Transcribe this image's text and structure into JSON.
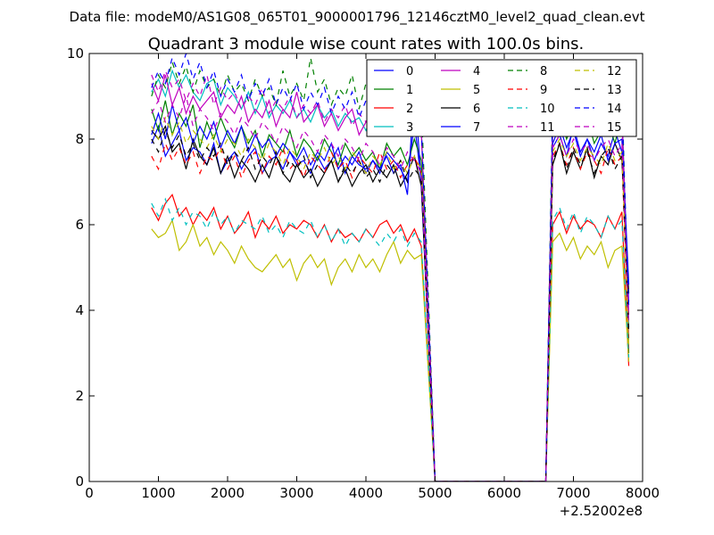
{
  "chart_data": {
    "type": "line",
    "suptitle": "Data file: modeM0/AS1G08_065T01_9000001796_12146cztM0_level2_quad_clean.evt",
    "title": "Quadrant 3 module wise count rates with 100.0s bins.",
    "xlabel": "",
    "ylabel": "",
    "x_offset_label": "+2.52002e8",
    "xlim": [
      0,
      8000
    ],
    "ylim": [
      0,
      10
    ],
    "xticks": [
      0,
      1000,
      2000,
      3000,
      4000,
      5000,
      6000,
      7000,
      8000
    ],
    "yticks": [
      0,
      2,
      4,
      6,
      8,
      10
    ],
    "grid": false,
    "legend_position": "top-right",
    "legend_columns": 4,
    "x": [
      900,
      1000,
      1100,
      1200,
      1300,
      1400,
      1500,
      1600,
      1700,
      1800,
      1900,
      2000,
      2100,
      2200,
      2300,
      2400,
      2500,
      2600,
      2700,
      2800,
      2900,
      3000,
      3100,
      3200,
      3300,
      3400,
      3500,
      3600,
      3700,
      3800,
      3900,
      4000,
      4100,
      4200,
      4300,
      4400,
      4500,
      4600,
      4700,
      4800,
      5000,
      6600,
      6700,
      6800,
      6900,
      7000,
      7100,
      7200,
      7300,
      7400,
      7500,
      7600,
      7700,
      7800
    ],
    "series": [
      {
        "name": "0",
        "color": "#0000ff",
        "dash": "solid",
        "values": [
          7.9,
          8.3,
          7.6,
          7.9,
          8.2,
          7.5,
          7.8,
          7.7,
          7.4,
          7.9,
          7.2,
          7.5,
          7.7,
          7.3,
          7.6,
          7.8,
          7.2,
          7.5,
          7.6,
          7.3,
          7.7,
          7.4,
          7.5,
          7.2,
          7.6,
          7.3,
          7.5,
          7.8,
          7.2,
          7.6,
          7.4,
          7.3,
          7.5,
          7.2,
          7.7,
          7.5,
          7.3,
          7.0,
          8.4,
          7.0,
          0,
          0,
          7.8,
          8.1,
          7.6,
          8.3,
          7.7,
          8.0,
          7.5,
          7.9,
          7.6,
          8.2,
          7.7,
          4.2
        ]
      },
      {
        "name": "1",
        "color": "#008000",
        "dash": "solid",
        "values": [
          8.7,
          8.2,
          8.9,
          8.1,
          8.6,
          8.3,
          8.8,
          7.8,
          8.4,
          8.0,
          8.5,
          8.1,
          7.8,
          8.3,
          7.9,
          8.2,
          7.6,
          8.1,
          7.9,
          7.7,
          8.2,
          7.6,
          8.0,
          7.8,
          7.5,
          8.0,
          7.7,
          7.4,
          7.9,
          7.6,
          7.8,
          7.5,
          7.7,
          7.3,
          7.9,
          7.6,
          7.8,
          7.4,
          8.0,
          7.5,
          0,
          0,
          8.3,
          8.6,
          8.0,
          8.4,
          8.1,
          8.5,
          7.9,
          8.2,
          8.4,
          7.9,
          8.6,
          3.0
        ]
      },
      {
        "name": "2",
        "color": "#ff0000",
        "dash": "solid",
        "values": [
          6.4,
          6.1,
          6.5,
          6.7,
          6.2,
          6.4,
          6.0,
          6.3,
          6.1,
          6.4,
          5.9,
          6.2,
          5.8,
          6.0,
          6.3,
          5.7,
          6.1,
          5.9,
          6.2,
          5.8,
          6.0,
          5.9,
          6.1,
          6.0,
          5.7,
          6.0,
          5.6,
          5.9,
          5.7,
          5.8,
          5.6,
          5.9,
          5.7,
          6.0,
          6.1,
          5.8,
          6.0,
          5.6,
          5.9,
          5.5,
          0,
          0,
          6.0,
          6.3,
          5.8,
          6.2,
          5.9,
          6.1,
          6.0,
          5.7,
          6.2,
          5.9,
          6.3,
          2.7
        ]
      },
      {
        "name": "3",
        "color": "#00bfbf",
        "dash": "solid",
        "values": [
          9.1,
          9.4,
          9.0,
          9.6,
          9.2,
          9.5,
          9.1,
          8.9,
          9.3,
          9.4,
          8.8,
          9.2,
          9.0,
          8.7,
          9.1,
          8.6,
          9.0,
          8.5,
          8.8,
          8.6,
          8.9,
          8.5,
          8.7,
          8.4,
          8.8,
          8.5,
          8.7,
          8.3,
          8.6,
          8.4,
          8.5,
          8.2,
          8.6,
          8.3,
          8.5,
          8.1,
          8.4,
          8.2,
          8.6,
          8.3,
          0,
          0,
          8.7,
          9.0,
          8.6,
          8.9,
          8.5,
          8.8,
          8.6,
          8.9,
          8.4,
          8.7,
          8.8,
          3.6
        ]
      },
      {
        "name": "4",
        "color": "#bf00bf",
        "dash": "solid",
        "values": [
          9.3,
          8.9,
          9.5,
          8.8,
          9.2,
          8.6,
          9.0,
          8.7,
          8.9,
          9.1,
          8.5,
          8.8,
          8.6,
          9.0,
          8.4,
          8.7,
          8.5,
          8.9,
          8.3,
          8.7,
          8.5,
          9.1,
          8.4,
          8.6,
          8.8,
          8.3,
          8.6,
          8.2,
          8.5,
          8.7,
          8.1,
          8.4,
          8.6,
          8.2,
          8.5,
          8.3,
          8.7,
          8.1,
          8.4,
          8.2,
          0,
          0,
          8.5,
          8.8,
          8.4,
          8.7,
          8.3,
          8.6,
          8.2,
          8.5,
          8.7,
          8.3,
          8.6,
          3.9
        ]
      },
      {
        "name": "5",
        "color": "#bfbf00",
        "dash": "solid",
        "values": [
          5.9,
          5.7,
          5.8,
          6.1,
          5.4,
          5.6,
          6.0,
          5.5,
          5.7,
          5.3,
          5.6,
          5.4,
          5.1,
          5.5,
          5.2,
          5.0,
          4.9,
          5.1,
          5.3,
          5.0,
          5.2,
          4.7,
          5.1,
          5.3,
          5.0,
          5.2,
          4.6,
          5.0,
          5.2,
          4.9,
          5.3,
          5.0,
          5.2,
          4.9,
          5.3,
          5.6,
          5.1,
          5.4,
          5.2,
          5.3,
          0,
          0,
          5.6,
          5.8,
          5.4,
          5.7,
          5.2,
          5.5,
          5.3,
          5.6,
          5.0,
          5.4,
          5.5,
          2.8
        ]
      },
      {
        "name": "6",
        "color": "#000000",
        "dash": "solid",
        "values": [
          8.2,
          8.0,
          8.3,
          7.7,
          7.9,
          7.3,
          8.0,
          7.6,
          7.4,
          7.8,
          7.2,
          7.6,
          7.1,
          7.5,
          7.3,
          7.0,
          7.4,
          7.1,
          7.6,
          7.2,
          7.0,
          7.4,
          7.1,
          7.3,
          6.9,
          7.2,
          7.5,
          7.0,
          7.3,
          6.9,
          7.2,
          7.4,
          7.0,
          7.3,
          7.1,
          7.4,
          6.9,
          7.2,
          7.6,
          6.9,
          0,
          0,
          7.4,
          7.9,
          7.2,
          7.7,
          7.3,
          7.8,
          7.1,
          7.6,
          7.4,
          7.9,
          7.5,
          4.4
        ]
      },
      {
        "name": "7",
        "color": "#0000ff",
        "dash": "solid",
        "values": [
          8.1,
          8.6,
          8.0,
          8.8,
          8.2,
          8.5,
          7.9,
          8.3,
          8.0,
          8.4,
          7.8,
          8.2,
          7.9,
          8.3,
          7.7,
          8.1,
          7.8,
          8.0,
          7.6,
          7.9,
          7.7,
          7.5,
          7.8,
          7.4,
          7.7,
          7.5,
          7.9,
          7.3,
          7.6,
          7.4,
          7.7,
          7.2,
          7.5,
          7.3,
          7.6,
          7.2,
          7.4,
          6.7,
          9.2,
          7.0,
          0,
          0,
          7.9,
          8.3,
          7.8,
          8.2,
          7.6,
          8.0,
          7.7,
          8.1,
          7.5,
          7.9,
          8.0,
          4.6
        ]
      },
      {
        "name": "8",
        "color": "#008000",
        "dash": "dashed",
        "values": [
          9.0,
          9.5,
          9.2,
          9.8,
          9.3,
          9.7,
          9.1,
          9.6,
          9.2,
          9.4,
          9.0,
          9.5,
          9.1,
          9.3,
          8.9,
          9.4,
          9.0,
          9.2,
          8.8,
          9.6,
          9.0,
          9.3,
          8.9,
          9.9,
          9.1,
          9.4,
          8.8,
          9.2,
          9.0,
          9.5,
          8.7,
          9.3,
          9.1,
          8.9,
          9.4,
          8.8,
          9.2,
          8.6,
          9.3,
          8.9,
          0,
          0,
          9.0,
          9.4,
          8.8,
          9.3,
          8.9,
          9.2,
          8.7,
          9.1,
          9.3,
          8.8,
          9.2,
          3.3
        ]
      },
      {
        "name": "9",
        "color": "#ff0000",
        "dash": "dashed",
        "values": [
          7.6,
          7.3,
          7.9,
          7.5,
          7.8,
          7.4,
          7.7,
          7.2,
          7.6,
          7.5,
          7.8,
          7.3,
          7.6,
          7.1,
          7.5,
          7.7,
          7.2,
          7.6,
          7.4,
          7.8,
          7.3,
          7.5,
          7.1,
          7.6,
          7.4,
          7.2,
          7.7,
          7.3,
          7.5,
          7.1,
          7.6,
          7.4,
          7.2,
          7.7,
          7.3,
          7.5,
          7.1,
          7.4,
          7.6,
          7.2,
          0,
          0,
          7.6,
          7.9,
          7.4,
          7.8,
          7.3,
          7.7,
          7.5,
          7.2,
          7.8,
          7.4,
          7.6,
          3.1
        ]
      },
      {
        "name": "10",
        "color": "#00bfbf",
        "dash": "dashed",
        "values": [
          6.5,
          6.2,
          6.6,
          6.1,
          6.4,
          6.0,
          6.3,
          6.2,
          5.9,
          6.3,
          6.0,
          6.2,
          5.8,
          6.1,
          6.0,
          5.9,
          6.2,
          5.8,
          6.0,
          5.7,
          6.1,
          5.9,
          5.8,
          6.1,
          5.7,
          6.0,
          5.6,
          5.9,
          5.5,
          5.8,
          5.6,
          5.9,
          5.7,
          5.5,
          5.8,
          5.6,
          5.9,
          5.5,
          5.8,
          5.6,
          0,
          0,
          6.1,
          6.4,
          5.9,
          6.3,
          5.8,
          6.2,
          6.0,
          5.7,
          6.2,
          5.9,
          6.1,
          2.9
        ]
      },
      {
        "name": "11",
        "color": "#bf00bf",
        "dash": "dashed",
        "values": [
          9.5,
          9.1,
          9.6,
          9.2,
          9.4,
          8.9,
          9.3,
          9.0,
          9.5,
          8.8,
          9.2,
          8.9,
          9.1,
          8.7,
          9.0,
          8.8,
          9.2,
          8.6,
          8.9,
          8.7,
          9.0,
          8.5,
          8.8,
          8.6,
          8.9,
          8.4,
          8.7,
          8.5,
          8.8,
          8.3,
          8.6,
          8.4,
          8.7,
          8.2,
          8.5,
          8.3,
          8.6,
          8.1,
          8.4,
          8.2,
          0,
          0,
          8.5,
          8.9,
          8.3,
          8.8,
          8.4,
          8.7,
          8.2,
          8.6,
          8.3,
          8.7,
          8.5,
          3.4
        ]
      },
      {
        "name": "12",
        "color": "#bfbf00",
        "dash": "dashed",
        "values": [
          8.3,
          8.0,
          8.5,
          8.1,
          8.4,
          7.9,
          8.2,
          8.0,
          7.8,
          8.1,
          7.7,
          8.0,
          7.9,
          7.6,
          8.0,
          7.8,
          7.5,
          7.9,
          7.7,
          7.4,
          7.8,
          7.6,
          7.3,
          7.7,
          7.5,
          7.8,
          7.4,
          7.6,
          7.3,
          7.7,
          7.5,
          7.2,
          7.6,
          7.4,
          7.7,
          7.3,
          7.5,
          7.2,
          7.6,
          7.3,
          0,
          0,
          7.7,
          8.0,
          7.6,
          7.9,
          7.5,
          7.8,
          7.6,
          7.4,
          7.9,
          7.5,
          7.7,
          3.2
        ]
      },
      {
        "name": "13",
        "color": "#000000",
        "dash": "dashed",
        "values": [
          8.0,
          7.7,
          8.2,
          7.8,
          8.1,
          7.6,
          7.9,
          7.5,
          7.8,
          7.6,
          7.9,
          7.4,
          7.7,
          7.5,
          7.8,
          7.3,
          7.6,
          7.4,
          7.7,
          7.2,
          7.5,
          7.3,
          7.6,
          7.1,
          7.4,
          7.2,
          7.5,
          7.0,
          7.4,
          7.2,
          7.5,
          7.1,
          7.3,
          7.0,
          7.4,
          7.2,
          7.5,
          7.0,
          7.3,
          7.1,
          0,
          0,
          7.5,
          7.9,
          7.3,
          7.8,
          7.4,
          7.7,
          7.2,
          7.6,
          7.8,
          7.3,
          7.6,
          3.5
        ]
      },
      {
        "name": "14",
        "color": "#0000ff",
        "dash": "dashed",
        "values": [
          9.2,
          9.6,
          9.3,
          9.9,
          9.5,
          10.0,
          9.4,
          9.8,
          9.2,
          9.6,
          9.0,
          9.4,
          9.1,
          9.5,
          8.9,
          9.3,
          9.0,
          9.4,
          8.8,
          9.2,
          8.9,
          9.3,
          8.7,
          9.1,
          8.8,
          9.2,
          8.6,
          9.0,
          8.7,
          9.1,
          8.5,
          8.9,
          8.6,
          9.0,
          8.4,
          8.8,
          8.5,
          8.9,
          8.7,
          8.3,
          0,
          0,
          8.8,
          9.2,
          8.6,
          9.1,
          8.7,
          9.0,
          8.5,
          8.9,
          8.6,
          9.0,
          8.8,
          4.1
        ]
      },
      {
        "name": "15",
        "color": "#bf00bf",
        "dash": "dashed",
        "values": [
          8.6,
          8.9,
          8.4,
          8.8,
          8.5,
          9.0,
          8.3,
          8.7,
          8.5,
          8.2,
          8.6,
          8.4,
          8.1,
          8.5,
          8.3,
          8.0,
          8.4,
          8.2,
          7.9,
          8.3,
          8.1,
          7.8,
          8.2,
          8.0,
          7.7,
          8.1,
          7.9,
          7.6,
          8.0,
          7.8,
          7.5,
          7.9,
          7.7,
          7.4,
          7.8,
          7.6,
          7.3,
          7.7,
          7.5,
          7.2,
          0,
          0,
          7.8,
          8.1,
          7.6,
          8.0,
          7.7,
          7.9,
          7.5,
          7.8,
          8.0,
          7.6,
          7.9,
          3.7
        ]
      }
    ]
  }
}
